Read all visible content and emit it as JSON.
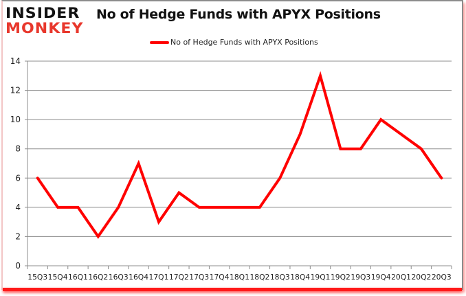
{
  "brand": {
    "logo_top": "INSIDER",
    "logo_bottom": "MONKEY"
  },
  "colors": {
    "series": "#ff0000",
    "grid": "#8c8c8c",
    "logo_red": "#e8372c",
    "logo_black": "#111111"
  },
  "chart_data": {
    "type": "line",
    "title": "No of Hedge Funds with APYX Positions",
    "xlabel": "",
    "ylabel": "",
    "ylim": [
      0,
      14
    ],
    "yticks": [
      0,
      2,
      4,
      6,
      8,
      10,
      12,
      14
    ],
    "grid": true,
    "legend_position": "top",
    "categories": [
      "15Q3",
      "15Q4",
      "16Q1",
      "16Q2",
      "16Q3",
      "16Q4",
      "17Q1",
      "17Q2",
      "17Q3",
      "17Q4",
      "18Q1",
      "18Q2",
      "18Q3",
      "18Q4",
      "19Q1",
      "19Q2",
      "19Q3",
      "19Q4",
      "20Q1",
      "20Q2",
      "20Q3"
    ],
    "series": [
      {
        "name": "No of Hedge Funds with APYX Positions",
        "values": [
          6,
          4,
          4,
          2,
          4,
          7,
          3,
          5,
          4,
          4,
          4,
          4,
          6,
          9,
          13,
          8,
          8,
          10,
          9,
          8,
          6
        ]
      }
    ]
  }
}
